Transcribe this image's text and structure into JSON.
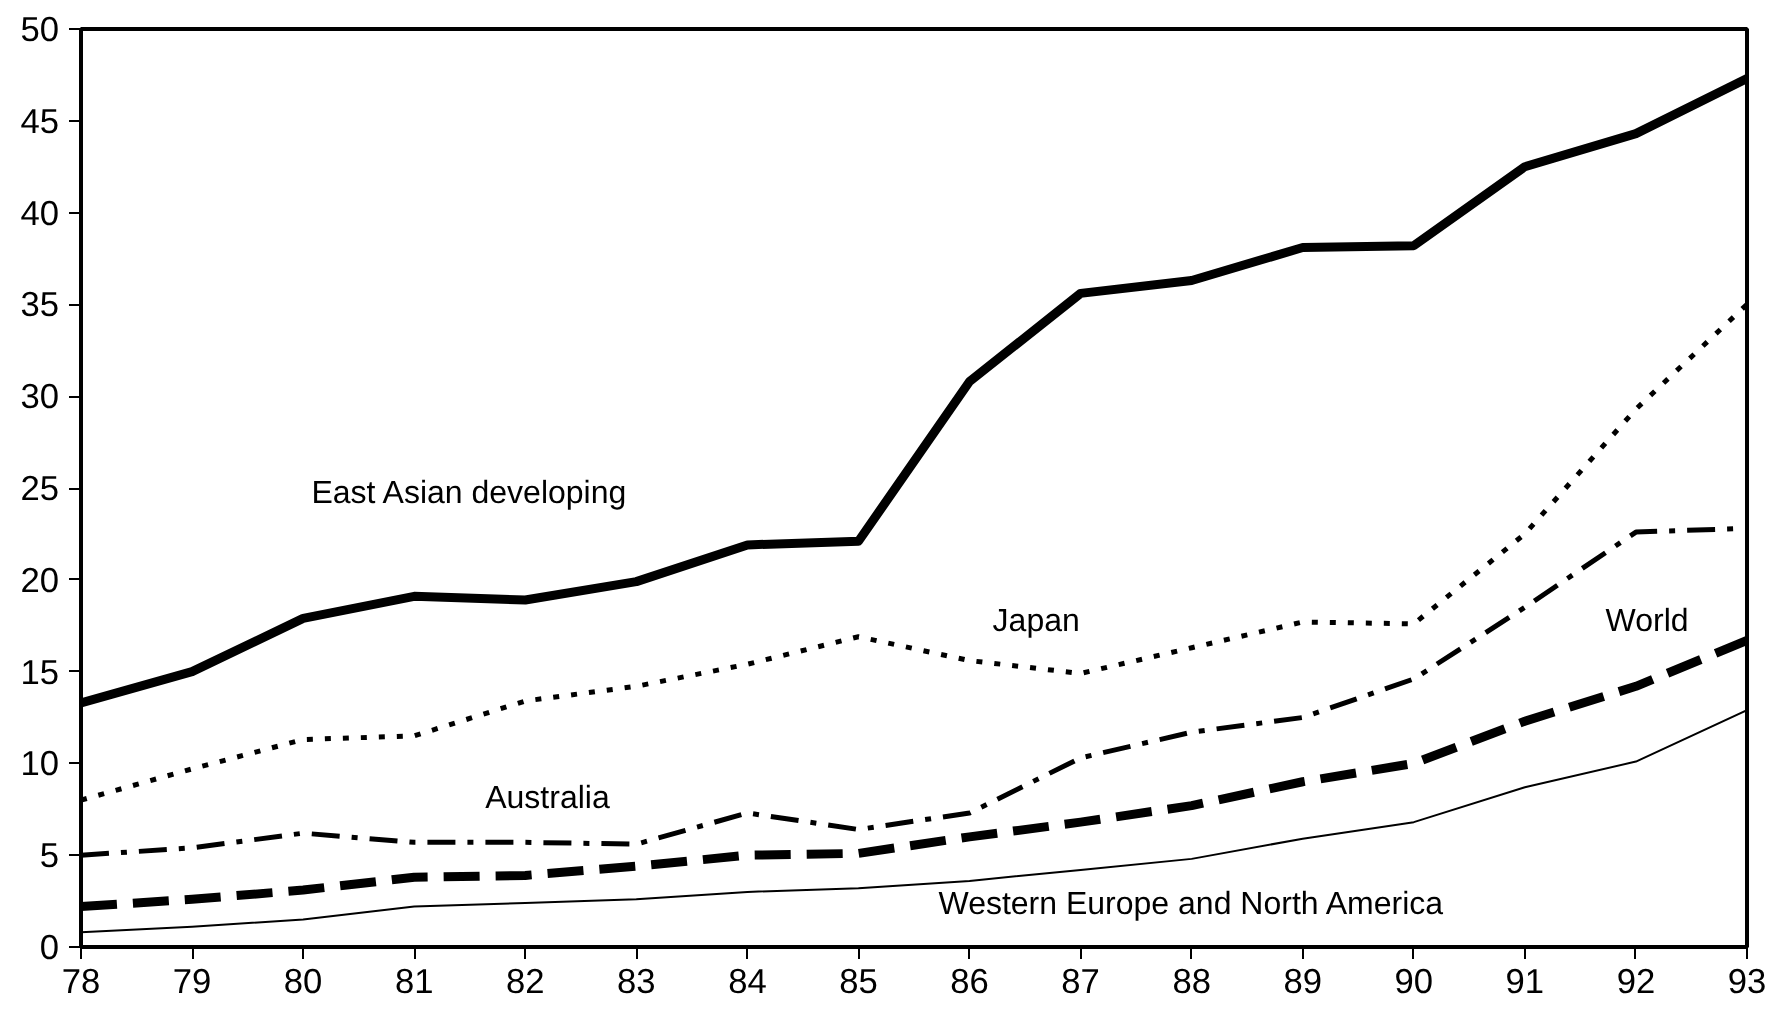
{
  "chart_data": {
    "type": "line",
    "x": [
      78,
      79,
      80,
      81,
      82,
      83,
      84,
      85,
      86,
      87,
      88,
      89,
      90,
      91,
      92,
      93
    ],
    "series": [
      {
        "name": "East Asian developing",
        "color": "#000000",
        "line_style": "solid",
        "values": [
          13.3,
          15,
          17.9,
          19.1,
          18.9,
          19.9,
          21.9,
          22.1,
          30.8,
          35.6,
          36.3,
          38.1,
          38.2,
          42.5,
          44.3,
          47.3
        ]
      },
      {
        "name": "Japan",
        "color": "#000000",
        "line_style": "dotted",
        "values": [
          8,
          9.7,
          11.3,
          11.5,
          13.4,
          14.2,
          15.4,
          16.9,
          15.6,
          14.9,
          16.3,
          17.7,
          17.6,
          22.5,
          29.3,
          35
        ]
      },
      {
        "name": "Australia",
        "color": "#000000",
        "line_style": "dashdot",
        "values": [
          5,
          5.4,
          6.2,
          5.7,
          5.7,
          5.6,
          7.3,
          6.4,
          7.3,
          10.3,
          11.7,
          12.5,
          14.6,
          18.5,
          22.6,
          22.8
        ]
      },
      {
        "name": "World",
        "color": "#000000",
        "line_style": "dashed",
        "values": [
          2.2,
          2.6,
          3.1,
          3.8,
          3.9,
          4.4,
          5,
          5.1,
          6,
          6.8,
          7.7,
          9,
          10,
          12.3,
          14.2,
          16.7
        ]
      },
      {
        "name": "Western Europe and North America",
        "color": "#000000",
        "line_style": "solid",
        "values": [
          0.8,
          1.1,
          1.5,
          2.2,
          2.4,
          2.6,
          3,
          3.2,
          3.6,
          4.2,
          4.8,
          5.9,
          6.8,
          8.7,
          10.1,
          12.9
        ]
      }
    ],
    "xlim": [
      78,
      93
    ],
    "xticks": [
      78,
      79,
      80,
      81,
      82,
      83,
      84,
      85,
      86,
      87,
      88,
      89,
      90,
      91,
      92,
      93
    ],
    "ylim": [
      0,
      50
    ],
    "yticks": [
      0,
      5,
      10,
      15,
      20,
      25,
      30,
      35,
      40,
      45,
      50
    ],
    "grid": false
  }
}
